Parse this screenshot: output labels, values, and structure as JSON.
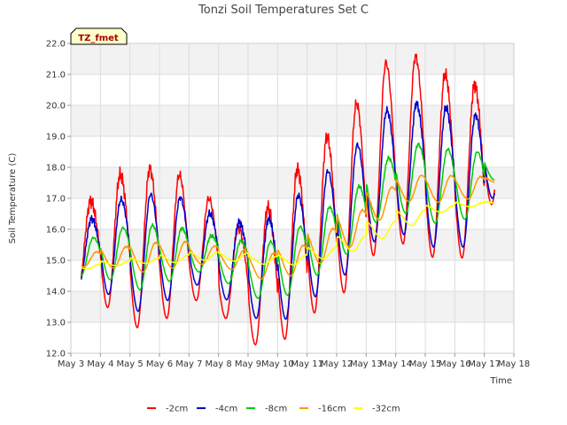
{
  "chart_data": {
    "type": "line",
    "title": "Tonzi Soil Temperatures Set C",
    "xlabel": "Time",
    "ylabel": "Soil Temperature (C)",
    "tag": "TZ_fmet",
    "ylim": [
      12.0,
      22.0
    ],
    "y_ticks": [
      "12.0",
      "13.0",
      "14.0",
      "15.0",
      "16.0",
      "17.0",
      "18.0",
      "19.0",
      "20.0",
      "21.0",
      "22.0"
    ],
    "x_ticks": [
      "May 3",
      "May 4",
      "May 5",
      "May 6",
      "May 7",
      "May 8",
      "May 9",
      "May 10",
      "May 11",
      "May 12",
      "May 13",
      "May 14",
      "May 15",
      "May 16",
      "May 17",
      "May 18"
    ],
    "xlim_days": [
      3,
      18
    ],
    "background_bands": true,
    "grid": true,
    "legend_placement": "bottom-center",
    "series": [
      {
        "name": "-2cm",
        "color": "#ff0000",
        "min": [
          14.2,
          13.7,
          12.8,
          12.9,
          13.8,
          13.4,
          12.3,
          12.2,
          13.2,
          13.6,
          15.0,
          15.6,
          15.3,
          14.5,
          16.8
        ],
        "max": [
          16.7,
          17.0,
          18.1,
          17.9,
          17.7,
          16.7,
          15.8,
          17.1,
          18.3,
          19.3,
          20.4,
          21.8,
          21.5,
          20.8,
          20.6
        ]
      },
      {
        "name": "-4cm",
        "color": "#0000cc",
        "min": [
          14.3,
          14.1,
          13.3,
          13.5,
          14.3,
          13.9,
          13.2,
          12.9,
          13.7,
          14.2,
          15.5,
          15.9,
          15.6,
          14.9,
          17.0
        ],
        "max": [
          16.2,
          16.4,
          17.2,
          17.1,
          17.0,
          16.3,
          16.2,
          16.4,
          17.4,
          18.1,
          19.0,
          20.2,
          20.0,
          19.9,
          19.6
        ]
      },
      {
        "name": "-8cm",
        "color": "#00cc00",
        "min": [
          14.5,
          14.5,
          14.0,
          14.2,
          14.7,
          14.4,
          13.8,
          13.7,
          14.4,
          14.9,
          16.1,
          16.6,
          16.3,
          15.9,
          17.6
        ],
        "max": [
          15.8,
          15.7,
          16.2,
          16.1,
          16.0,
          15.7,
          15.6,
          15.6,
          16.3,
          16.9,
          17.6,
          18.6,
          18.8,
          18.5,
          18.5
        ]
      },
      {
        "name": "-16cm",
        "color": "#ff9900",
        "min": [
          14.8,
          14.8,
          14.6,
          14.7,
          14.9,
          14.8,
          14.4,
          14.4,
          14.8,
          15.2,
          16.1,
          16.9,
          16.9,
          16.8,
          17.5
        ],
        "max": [
          15.2,
          15.3,
          15.5,
          15.6,
          15.6,
          15.4,
          15.3,
          15.2,
          15.6,
          16.2,
          16.8,
          17.6,
          17.8,
          17.7,
          17.7
        ]
      },
      {
        "name": "-32cm",
        "color": "#ffff00",
        "min": [
          14.7,
          14.8,
          14.9,
          14.9,
          15.0,
          15.0,
          14.9,
          14.8,
          15.0,
          15.2,
          15.6,
          16.0,
          16.5,
          16.7,
          16.8
        ],
        "max": [
          14.8,
          14.9,
          15.0,
          15.1,
          15.2,
          15.3,
          15.2,
          15.1,
          15.2,
          15.5,
          15.9,
          16.4,
          16.7,
          16.8,
          16.9
        ]
      }
    ]
  }
}
